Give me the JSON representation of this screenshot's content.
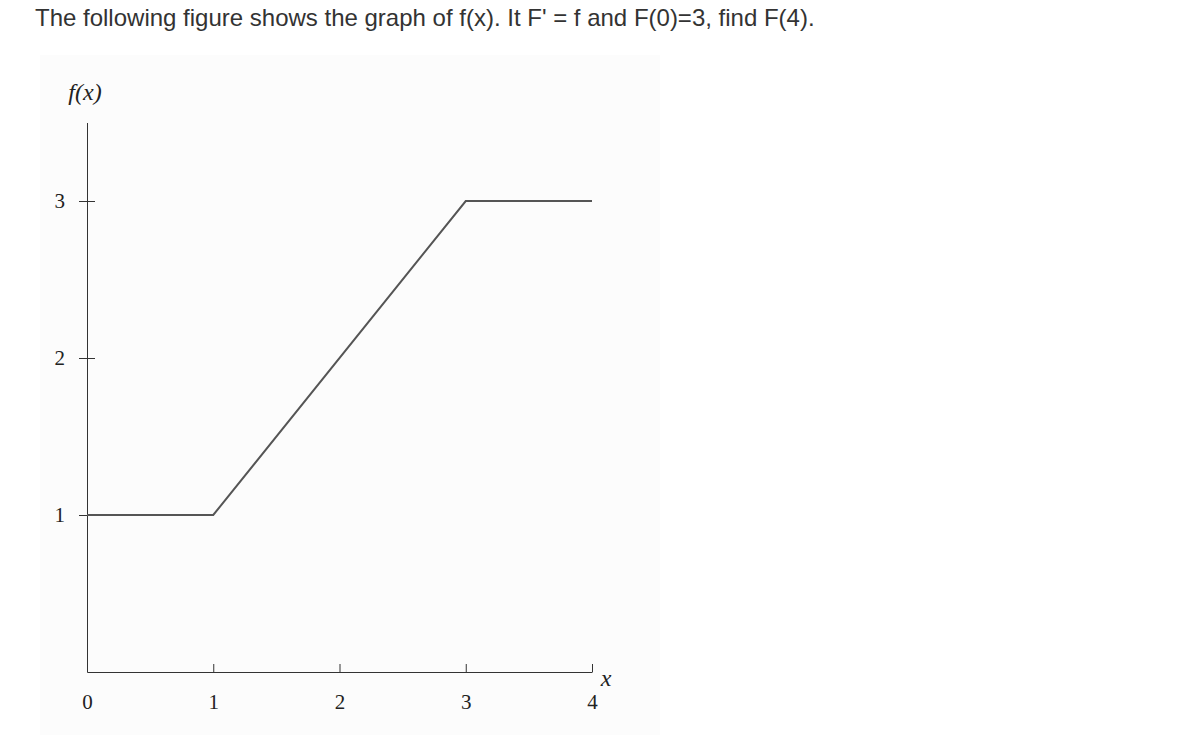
{
  "chart_data": {
    "type": "line",
    "title": "The following figure shows the graph of f(x). It F' = f and F(0)=3, find F(4).",
    "x_label": "x",
    "y_label": "f(x)",
    "x": [
      0,
      1,
      3,
      4
    ],
    "values": [
      1,
      1,
      3,
      3
    ],
    "xlim": [
      0,
      4
    ],
    "ylim": [
      0,
      3.5
    ],
    "xticks": [
      0,
      1,
      2,
      3,
      4
    ],
    "yticks": [
      1,
      2,
      3
    ],
    "color": "#555555",
    "grid": false
  }
}
